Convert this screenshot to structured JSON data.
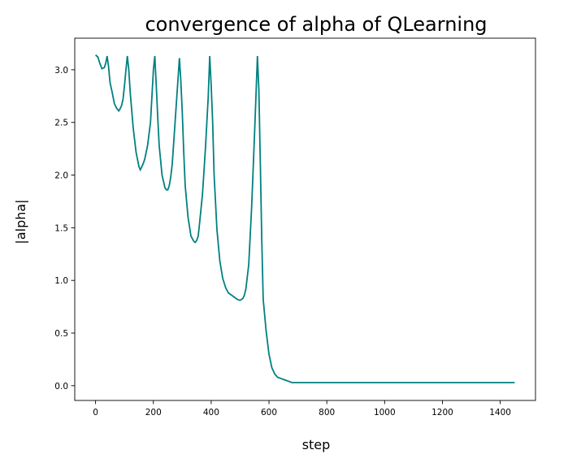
{
  "chart_data": {
    "type": "line",
    "title": "convergence of alpha of QLearning",
    "xlabel": "step",
    "ylabel": "|alpha|",
    "xlim": [
      -72,
      1522
    ],
    "ylim": [
      -0.14,
      3.3
    ],
    "xticks": [
      0,
      200,
      400,
      600,
      800,
      1000,
      1200,
      1400
    ],
    "yticks": [
      0.0,
      0.5,
      1.0,
      1.5,
      2.0,
      2.5,
      3.0
    ],
    "xtick_labels": [
      "0",
      "200",
      "400",
      "600",
      "800",
      "1000",
      "1200",
      "1400"
    ],
    "ytick_labels": [
      "0.0",
      "0.5",
      "1.0",
      "1.5",
      "2.0",
      "2.5",
      "3.0"
    ],
    "grid": false,
    "series": [
      {
        "color": "#008080",
        "x": [
          0,
          8,
          15,
          22,
          30,
          35,
          40,
          45,
          50,
          58,
          65,
          72,
          80,
          85,
          90,
          95,
          100,
          105,
          110,
          115,
          120,
          130,
          140,
          150,
          155,
          160,
          165,
          170,
          180,
          190,
          195,
          200,
          205,
          210,
          215,
          220,
          230,
          240,
          245,
          250,
          255,
          260,
          265,
          270,
          280,
          290,
          295,
          300,
          305,
          310,
          320,
          330,
          340,
          345,
          350,
          355,
          360,
          370,
          380,
          390,
          395,
          400,
          405,
          410,
          420,
          430,
          440,
          450,
          460,
          470,
          480,
          490,
          500,
          510,
          515,
          520,
          530,
          540,
          550,
          560,
          565,
          570,
          575,
          580,
          590,
          600,
          610,
          620,
          630,
          640,
          650,
          660,
          670,
          680,
          690,
          700,
          710,
          720,
          800,
          900,
          1000,
          1100,
          1200,
          1300,
          1400,
          1450
        ],
        "y": [
          3.14,
          3.12,
          3.06,
          3.01,
          3.02,
          3.06,
          3.13,
          3.03,
          2.88,
          2.78,
          2.68,
          2.64,
          2.61,
          2.63,
          2.66,
          2.72,
          2.85,
          3.0,
          3.13,
          3.0,
          2.78,
          2.45,
          2.22,
          2.08,
          2.05,
          2.08,
          2.11,
          2.15,
          2.28,
          2.5,
          2.75,
          3.0,
          3.13,
          2.85,
          2.55,
          2.28,
          2.0,
          1.88,
          1.86,
          1.86,
          1.9,
          1.98,
          2.1,
          2.3,
          2.7,
          3.11,
          2.9,
          2.6,
          2.22,
          1.9,
          1.6,
          1.42,
          1.37,
          1.36,
          1.38,
          1.42,
          1.55,
          1.82,
          2.25,
          2.75,
          3.13,
          2.85,
          2.5,
          2.0,
          1.48,
          1.18,
          1.02,
          0.93,
          0.88,
          0.86,
          0.84,
          0.82,
          0.81,
          0.83,
          0.86,
          0.92,
          1.15,
          1.7,
          2.4,
          3.13,
          2.8,
          2.1,
          1.4,
          0.82,
          0.52,
          0.3,
          0.17,
          0.11,
          0.08,
          0.07,
          0.06,
          0.05,
          0.04,
          0.03,
          0.03,
          0.03,
          0.03,
          0.03,
          0.03,
          0.03,
          0.03,
          0.03,
          0.03,
          0.03,
          0.03,
          0.03
        ]
      }
    ]
  }
}
